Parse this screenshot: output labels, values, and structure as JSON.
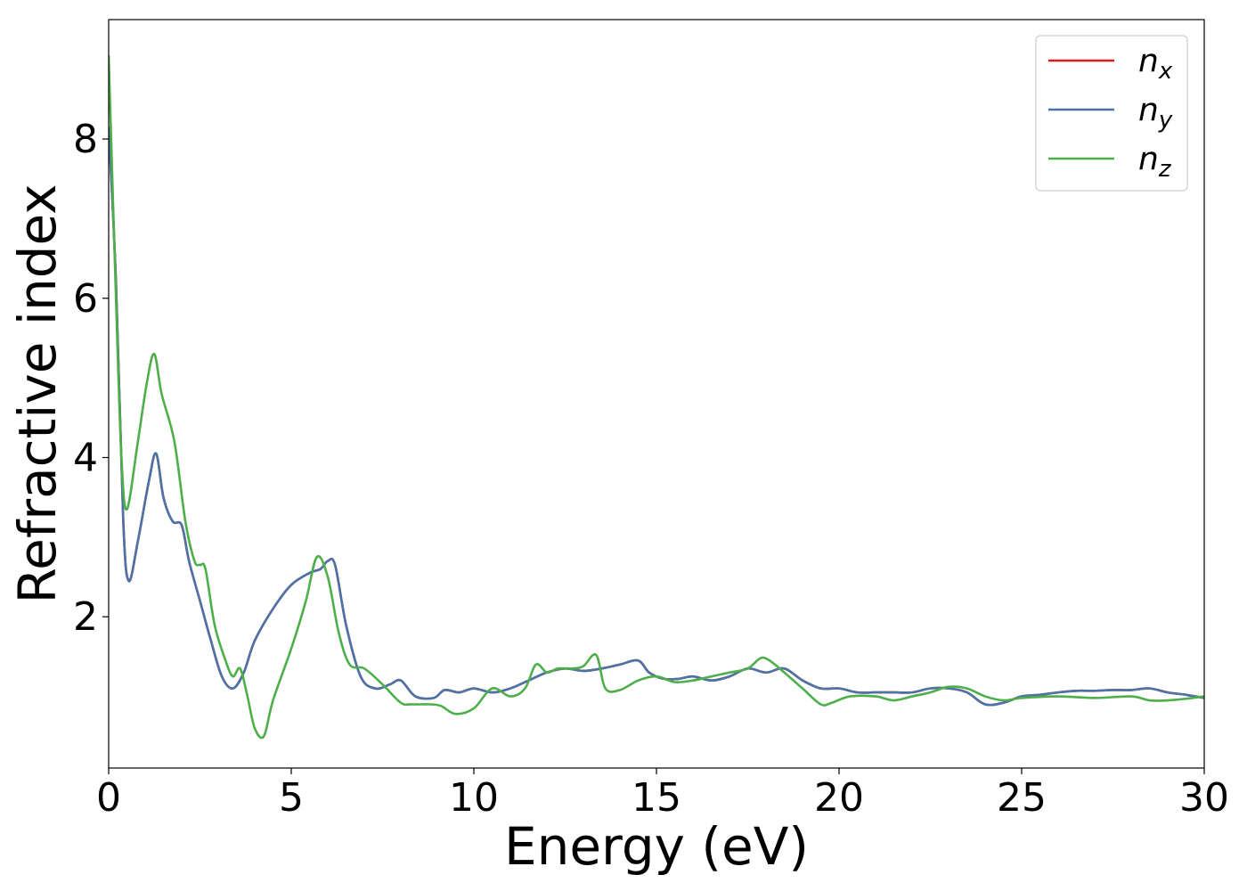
{
  "chart_data": {
    "type": "line",
    "title": "",
    "xlabel": "Energy (eV)",
    "ylabel": "Refractive index",
    "xlim": [
      0,
      30
    ],
    "ylim": [
      0.1,
      9.5
    ],
    "xticks": [
      0,
      5,
      10,
      15,
      20,
      25,
      30
    ],
    "yticks": [
      2,
      4,
      6,
      8
    ],
    "grid": false,
    "legend_position": "top-right",
    "series": [
      {
        "name": "n_x",
        "label_base": "n",
        "label_sub": "x",
        "color": "#e41a1c",
        "x": [
          0,
          0.2,
          0.4,
          0.55,
          0.8,
          1.1,
          1.3,
          1.5,
          1.75,
          2.0,
          2.2,
          2.5,
          2.8,
          3.1,
          3.4,
          3.7,
          4.0,
          4.5,
          5.0,
          5.5,
          5.8,
          6.0,
          6.2,
          6.5,
          6.9,
          7.3,
          7.7,
          8.0,
          8.4,
          8.9,
          9.2,
          9.6,
          10.0,
          10.5,
          11.0,
          11.5,
          12.0,
          12.5,
          13.0,
          13.5,
          14.0,
          14.5,
          14.8,
          15.2,
          15.6,
          16.0,
          16.5,
          17.0,
          17.5,
          18.0,
          18.5,
          19.0,
          19.5,
          20.0,
          20.5,
          21.0,
          21.5,
          22.0,
          22.5,
          23.0,
          23.5,
          24.0,
          24.5,
          25.0,
          25.5,
          26.0,
          26.5,
          27.0,
          27.5,
          28.0,
          28.5,
          29.0,
          29.5,
          30.0
        ],
        "y": [
          8.15,
          6.2,
          3.2,
          2.45,
          2.95,
          3.7,
          4.05,
          3.5,
          3.2,
          3.15,
          2.7,
          2.2,
          1.7,
          1.25,
          1.1,
          1.3,
          1.7,
          2.1,
          2.4,
          2.55,
          2.6,
          2.7,
          2.65,
          1.9,
          1.25,
          1.1,
          1.15,
          1.2,
          1.0,
          0.98,
          1.08,
          1.05,
          1.1,
          1.05,
          1.1,
          1.2,
          1.3,
          1.35,
          1.32,
          1.35,
          1.4,
          1.45,
          1.3,
          1.22,
          1.22,
          1.25,
          1.2,
          1.25,
          1.35,
          1.3,
          1.35,
          1.2,
          1.1,
          1.1,
          1.05,
          1.05,
          1.05,
          1.05,
          1.1,
          1.1,
          1.05,
          0.9,
          0.92,
          1.0,
          1.02,
          1.05,
          1.07,
          1.07,
          1.08,
          1.08,
          1.1,
          1.05,
          1.02,
          0.98
        ]
      },
      {
        "name": "n_y",
        "label_base": "n",
        "label_sub": "y",
        "color": "#4a74a8",
        "x": [
          0,
          0.2,
          0.4,
          0.55,
          0.8,
          1.1,
          1.3,
          1.5,
          1.75,
          2.0,
          2.2,
          2.5,
          2.8,
          3.1,
          3.4,
          3.7,
          4.0,
          4.5,
          5.0,
          5.5,
          5.8,
          6.0,
          6.2,
          6.5,
          6.9,
          7.3,
          7.7,
          8.0,
          8.4,
          8.9,
          9.2,
          9.6,
          10.0,
          10.5,
          11.0,
          11.5,
          12.0,
          12.5,
          13.0,
          13.5,
          14.0,
          14.5,
          14.8,
          15.2,
          15.6,
          16.0,
          16.5,
          17.0,
          17.5,
          18.0,
          18.5,
          19.0,
          19.5,
          20.0,
          20.5,
          21.0,
          21.5,
          22.0,
          22.5,
          23.0,
          23.5,
          24.0,
          24.5,
          25.0,
          25.5,
          26.0,
          26.5,
          27.0,
          27.5,
          28.0,
          28.5,
          29.0,
          29.5,
          30.0
        ],
        "y": [
          8.15,
          6.2,
          3.2,
          2.45,
          2.95,
          3.7,
          4.05,
          3.5,
          3.2,
          3.15,
          2.7,
          2.2,
          1.7,
          1.25,
          1.1,
          1.3,
          1.7,
          2.1,
          2.4,
          2.55,
          2.6,
          2.7,
          2.65,
          1.9,
          1.25,
          1.1,
          1.15,
          1.2,
          1.0,
          0.98,
          1.08,
          1.05,
          1.1,
          1.05,
          1.1,
          1.2,
          1.3,
          1.35,
          1.32,
          1.35,
          1.4,
          1.45,
          1.3,
          1.22,
          1.22,
          1.25,
          1.2,
          1.25,
          1.35,
          1.3,
          1.35,
          1.2,
          1.1,
          1.1,
          1.05,
          1.05,
          1.05,
          1.05,
          1.1,
          1.1,
          1.05,
          0.9,
          0.92,
          1.0,
          1.02,
          1.05,
          1.07,
          1.07,
          1.08,
          1.08,
          1.1,
          1.05,
          1.02,
          0.98
        ]
      },
      {
        "name": "n_z",
        "label_base": "n",
        "label_sub": "z",
        "color": "#4daf4a",
        "x": [
          0,
          0.2,
          0.35,
          0.5,
          0.8,
          1.05,
          1.25,
          1.45,
          1.8,
          2.1,
          2.35,
          2.5,
          2.65,
          2.9,
          3.2,
          3.4,
          3.6,
          3.8,
          4.0,
          4.25,
          4.5,
          5.0,
          5.4,
          5.7,
          6.0,
          6.3,
          6.6,
          7.0,
          7.5,
          8.0,
          8.3,
          8.8,
          9.1,
          9.5,
          10.0,
          10.5,
          11.0,
          11.4,
          11.7,
          12.0,
          12.3,
          12.7,
          13.0,
          13.35,
          13.6,
          14.0,
          14.5,
          15.0,
          15.5,
          16.0,
          16.5,
          17.0,
          17.5,
          17.85,
          18.1,
          18.5,
          19.0,
          19.5,
          19.8,
          20.3,
          21.0,
          21.5,
          22.0,
          22.5,
          23.0,
          23.5,
          24.0,
          24.5,
          25.0,
          26.0,
          27.0,
          28.0,
          28.5,
          29.0,
          29.5,
          30.0
        ],
        "y": [
          9.05,
          6.0,
          4.0,
          3.35,
          4.2,
          4.95,
          5.3,
          4.8,
          4.2,
          3.2,
          2.7,
          2.65,
          2.6,
          1.9,
          1.45,
          1.25,
          1.35,
          1.0,
          0.6,
          0.5,
          0.95,
          1.6,
          2.2,
          2.75,
          2.5,
          1.8,
          1.4,
          1.35,
          1.15,
          0.92,
          0.9,
          0.9,
          0.88,
          0.78,
          0.85,
          1.1,
          1.0,
          1.1,
          1.4,
          1.3,
          1.35,
          1.35,
          1.38,
          1.52,
          1.1,
          1.08,
          1.2,
          1.25,
          1.18,
          1.2,
          1.25,
          1.3,
          1.35,
          1.48,
          1.45,
          1.3,
          1.1,
          0.9,
          0.92,
          1.0,
          1.0,
          0.95,
          1.0,
          1.05,
          1.12,
          1.1,
          1.0,
          0.95,
          0.98,
          1.0,
          0.98,
          1.0,
          0.95,
          0.95,
          0.97,
          1.0
        ]
      }
    ]
  }
}
